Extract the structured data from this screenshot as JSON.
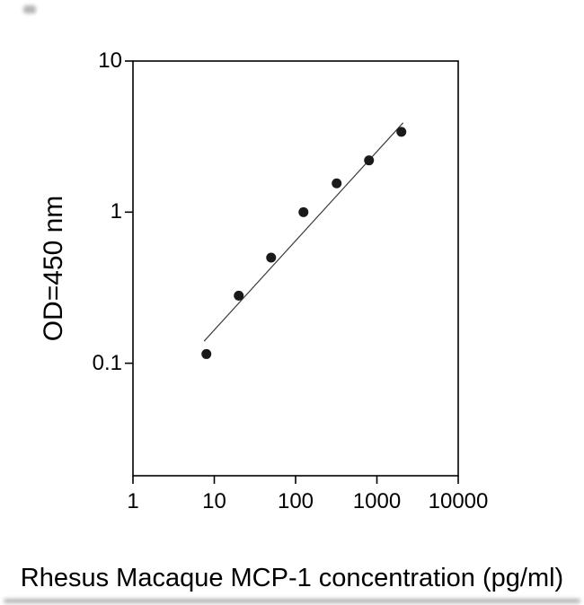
{
  "figure": {
    "title": "",
    "x_axis_label": "Rhesus Macaque MCP-1 concentration (pg/ml)",
    "y_axis_label": "OD=450 nm"
  },
  "chart_data": {
    "type": "scatter",
    "title": "",
    "xlabel": "Rhesus Macaque MCP-1 concentration (pg/ml)",
    "ylabel": "OD=450 nm",
    "x_scale": "log",
    "y_scale": "log",
    "xlim": [
      1,
      10000
    ],
    "ylim": [
      0.018,
      10
    ],
    "x_ticks": [
      1,
      10,
      100,
      1000,
      10000
    ],
    "y_ticks": [
      10,
      1,
      0.1
    ],
    "grid": false,
    "legend": null,
    "marker": "filled-circle",
    "marker_color": "#1a1a1a",
    "line_color": "#3a3a3a",
    "points": [
      {
        "x": 8,
        "y": 0.115
      },
      {
        "x": 20,
        "y": 0.28
      },
      {
        "x": 50,
        "y": 0.5
      },
      {
        "x": 125,
        "y": 1.0
      },
      {
        "x": 320,
        "y": 1.55
      },
      {
        "x": 800,
        "y": 2.2
      },
      {
        "x": 2000,
        "y": 3.4
      }
    ],
    "fit_line": {
      "x1": 7.5,
      "y1": 0.14,
      "x2": 2100,
      "y2": 3.9
    }
  }
}
